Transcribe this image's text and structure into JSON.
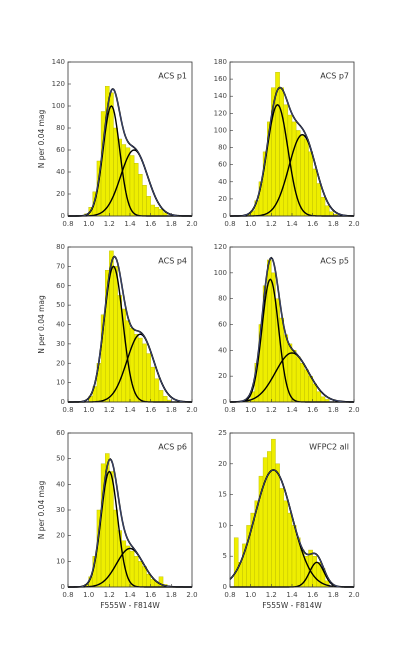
{
  "chart_data": [
    {
      "type": "histogram",
      "label": "ACS p1",
      "ylabel": "N per 0.04 mag",
      "color": "#eeee00",
      "bins": [
        0.88,
        0.92,
        0.96,
        1.0,
        1.04,
        1.08,
        1.12,
        1.16,
        1.2,
        1.24,
        1.28,
        1.32,
        1.36,
        1.4,
        1.44,
        1.48,
        1.52,
        1.56,
        1.6,
        1.64,
        1.68,
        1.72,
        1.76,
        1.8,
        1.84,
        1.88,
        1.92
      ],
      "counts": [
        0,
        0,
        2,
        8,
        22,
        50,
        95,
        118,
        112,
        80,
        70,
        65,
        62,
        55,
        48,
        38,
        28,
        18,
        10,
        8,
        6,
        3,
        0,
        0,
        0,
        0
      ],
      "fits": [
        {
          "mean": 1.22,
          "sigma": 0.08,
          "peak": 100
        },
        {
          "mean": 1.44,
          "sigma": 0.13,
          "peak": 60
        }
      ],
      "xlim": [
        0.8,
        2.0
      ],
      "xticks": [
        0.8,
        {
          "value": 1,
          "label": "1.0"
        },
        1.2,
        1.4,
        1.6,
        1.8,
        {
          "value": 2,
          "label": "2.0"
        }
      ],
      "ylim": [
        0,
        140
      ],
      "yticks": [
        0,
        20,
        40,
        60,
        80,
        100,
        120,
        140
      ]
    },
    {
      "type": "histogram",
      "label": "ACS p7",
      "color": "#eeee00",
      "bins": [
        0.88,
        0.92,
        0.96,
        1.0,
        1.04,
        1.08,
        1.12,
        1.16,
        1.2,
        1.24,
        1.28,
        1.32,
        1.36,
        1.4,
        1.44,
        1.48,
        1.52,
        1.56,
        1.6,
        1.64,
        1.68,
        1.72,
        1.76,
        1.8,
        1.84,
        1.88,
        1.92
      ],
      "counts": [
        0,
        0,
        2,
        6,
        18,
        40,
        75,
        110,
        150,
        168,
        150,
        130,
        118,
        110,
        100,
        95,
        90,
        75,
        55,
        38,
        22,
        12,
        5,
        2,
        0,
        0
      ],
      "fits": [
        {
          "mean": 1.26,
          "sigma": 0.1,
          "peak": 130
        },
        {
          "mean": 1.5,
          "sigma": 0.13,
          "peak": 95
        }
      ],
      "xlim": [
        0.8,
        2.0
      ],
      "xticks": [
        0.8,
        {
          "value": 1,
          "label": "1.0"
        },
        1.2,
        1.4,
        1.6,
        1.8,
        {
          "value": 2,
          "label": "2.0"
        }
      ],
      "ylim": [
        0,
        180
      ],
      "yticks": [
        0,
        20,
        40,
        60,
        80,
        100,
        120,
        140,
        160,
        180
      ]
    },
    {
      "type": "histogram",
      "label": "ACS p4",
      "ylabel": "N per 0.04 mag",
      "color": "#eeee00",
      "bins": [
        0.88,
        0.92,
        0.96,
        1.0,
        1.04,
        1.08,
        1.12,
        1.16,
        1.2,
        1.24,
        1.28,
        1.32,
        1.36,
        1.4,
        1.44,
        1.48,
        1.52,
        1.56,
        1.6,
        1.64,
        1.68,
        1.72,
        1.76,
        1.8,
        1.84,
        1.88,
        1.92
      ],
      "counts": [
        0,
        0,
        0,
        3,
        8,
        20,
        45,
        68,
        78,
        70,
        55,
        48,
        42,
        38,
        35,
        33,
        30,
        25,
        18,
        12,
        6,
        3,
        1,
        0,
        0,
        0
      ],
      "fits": [
        {
          "mean": 1.24,
          "sigma": 0.09,
          "peak": 70
        },
        {
          "mean": 1.5,
          "sigma": 0.13,
          "peak": 35
        }
      ],
      "xlim": [
        0.8,
        2.0
      ],
      "xticks": [
        0.8,
        {
          "value": 1,
          "label": "1.0"
        },
        1.2,
        1.4,
        1.6,
        1.8,
        {
          "value": 2,
          "label": "2.0"
        }
      ],
      "ylim": [
        0,
        80
      ],
      "yticks": [
        0,
        10,
        20,
        30,
        40,
        50,
        60,
        70,
        80
      ]
    },
    {
      "type": "histogram",
      "label": "ACS p5",
      "color": "#eeee00",
      "bins": [
        0.88,
        0.92,
        0.96,
        1.0,
        1.04,
        1.08,
        1.12,
        1.16,
        1.2,
        1.24,
        1.28,
        1.32,
        1.36,
        1.4,
        1.44,
        1.48,
        1.52,
        1.56,
        1.6,
        1.64,
        1.68,
        1.72,
        1.76,
        1.8,
        1.84,
        1.88,
        1.92
      ],
      "counts": [
        0,
        0,
        2,
        8,
        30,
        60,
        90,
        110,
        100,
        80,
        65,
        52,
        45,
        40,
        35,
        30,
        25,
        20,
        14,
        8,
        4,
        2,
        0,
        0,
        0,
        0
      ],
      "fits": [
        {
          "mean": 1.19,
          "sigma": 0.08,
          "peak": 95
        },
        {
          "mean": 1.4,
          "sigma": 0.16,
          "peak": 38
        }
      ],
      "xlim": [
        0.8,
        2.0
      ],
      "xticks": [
        0.8,
        {
          "value": 1,
          "label": "1.0"
        },
        1.2,
        1.4,
        1.6,
        1.8,
        {
          "value": 2,
          "label": "2.0"
        }
      ],
      "ylim": [
        0,
        120
      ],
      "yticks": [
        0,
        20,
        40,
        60,
        80,
        100,
        120
      ]
    },
    {
      "type": "histogram",
      "label": "ACS p6",
      "ylabel": "N per 0.04 mag",
      "xlabel": "F555W - F814W",
      "color": "#eeee00",
      "bins": [
        0.88,
        0.92,
        0.96,
        1.0,
        1.04,
        1.08,
        1.12,
        1.16,
        1.2,
        1.24,
        1.28,
        1.32,
        1.36,
        1.4,
        1.44,
        1.48,
        1.52,
        1.56,
        1.6,
        1.64,
        1.68,
        1.72,
        1.76,
        1.8,
        1.84,
        1.88,
        1.92
      ],
      "counts": [
        0,
        0,
        1,
        4,
        12,
        30,
        48,
        52,
        45,
        30,
        22,
        18,
        16,
        14,
        12,
        10,
        8,
        5,
        3,
        2,
        4,
        1,
        0,
        0,
        0,
        0
      ],
      "fits": [
        {
          "mean": 1.2,
          "sigma": 0.08,
          "peak": 45
        },
        {
          "mean": 1.4,
          "sigma": 0.13,
          "peak": 15
        }
      ],
      "xlim": [
        0.8,
        2.0
      ],
      "xticks": [
        0.8,
        {
          "value": 1,
          "label": "1.0"
        },
        1.2,
        1.4,
        1.6,
        1.8,
        {
          "value": 2,
          "label": "2.0"
        }
      ],
      "ylim": [
        0,
        60
      ],
      "yticks": [
        0,
        10,
        20,
        30,
        40,
        50,
        60
      ]
    },
    {
      "type": "histogram",
      "label": "WFPC2 all",
      "xlabel": "F555W - F814W",
      "color": "#eeee00",
      "bins": [
        0.84,
        0.88,
        0.92,
        0.96,
        1.0,
        1.04,
        1.08,
        1.12,
        1.16,
        1.2,
        1.24,
        1.28,
        1.32,
        1.36,
        1.4,
        1.44,
        1.48,
        1.52,
        1.56,
        1.6,
        1.64,
        1.68,
        1.72,
        1.76,
        1.8,
        1.84,
        1.88
      ],
      "counts": [
        8,
        4,
        7,
        10,
        12,
        14,
        18,
        21,
        22,
        24,
        20,
        16,
        14,
        12,
        10,
        8,
        6,
        5,
        6,
        5,
        4,
        3,
        1,
        0,
        0,
        0
      ],
      "fits": [
        {
          "mean": 1.22,
          "sigma": 0.18,
          "peak": 19
        },
        {
          "mean": 1.64,
          "sigma": 0.07,
          "peak": 4
        }
      ],
      "xlim": [
        0.8,
        2.0
      ],
      "xticks": [
        0.8,
        {
          "value": 1,
          "label": "1.0"
        },
        1.2,
        1.4,
        1.6,
        1.8,
        {
          "value": 2,
          "label": "2.0"
        }
      ],
      "ylim": [
        0,
        25
      ],
      "yticks": [
        0,
        5,
        10,
        15,
        20,
        25
      ]
    }
  ]
}
